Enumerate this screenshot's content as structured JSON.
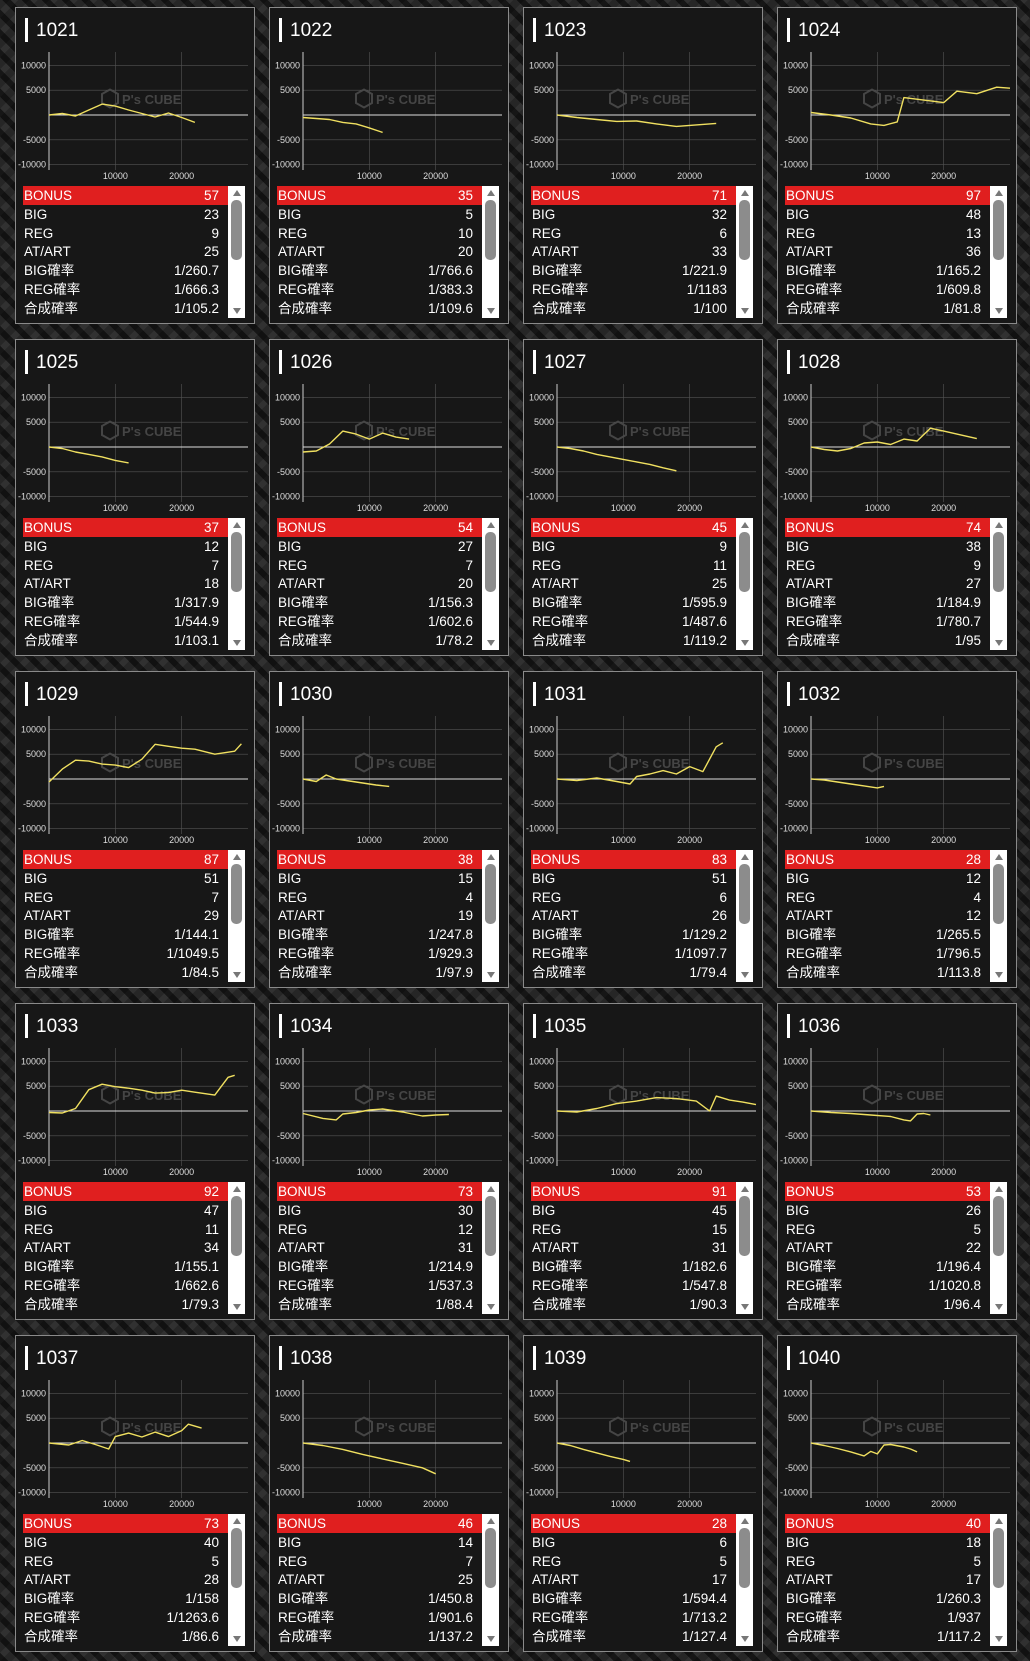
{
  "stat_labels": [
    "BONUS",
    "BIG",
    "REG",
    "AT/ART",
    "BIG確率",
    "REG確率",
    "合成確率"
  ],
  "watermark": "P's CUBE",
  "colors": {
    "line": "#f0e060",
    "bonus_bg": "#e01f1f"
  },
  "chart_data": [
    {
      "type": "line",
      "title": "1021",
      "xticks": [
        "10000",
        "20000"
      ],
      "yticks": [
        "10000",
        "5000",
        "-5000",
        "-10000"
      ],
      "x": [
        0,
        2000,
        4000,
        6000,
        8000,
        10000,
        12000,
        14000,
        16000,
        18000,
        20000,
        22000
      ],
      "y": [
        0,
        300,
        -200,
        1000,
        2200,
        1800,
        1000,
        300,
        -400,
        400,
        -500,
        -1500
      ]
    },
    {
      "type": "line",
      "title": "1022",
      "xticks": [
        "10000",
        "20000"
      ],
      "yticks": [
        "10000",
        "5000",
        "-5000",
        "-10000"
      ],
      "x": [
        0,
        2000,
        4000,
        6000,
        8000,
        10000,
        12000
      ],
      "y": [
        -500,
        -700,
        -900,
        -1500,
        -1800,
        -2600,
        -3500
      ]
    },
    {
      "type": "line",
      "title": "1023",
      "xticks": [
        "10000",
        "20000"
      ],
      "yticks": [
        "10000",
        "5000",
        "-5000",
        "-10000"
      ],
      "x": [
        0,
        3000,
        6000,
        9000,
        12000,
        15000,
        18000,
        21000,
        24000
      ],
      "y": [
        0,
        -500,
        -900,
        -1300,
        -1200,
        -1800,
        -2300,
        -2000,
        -1700
      ]
    },
    {
      "type": "line",
      "title": "1024",
      "xticks": [
        "10000",
        "20000"
      ],
      "yticks": [
        "10000",
        "5000",
        "-5000",
        "-10000"
      ],
      "x": [
        0,
        3000,
        6000,
        9000,
        11000,
        13000,
        14000,
        17000,
        20000,
        22000,
        25000,
        28000,
        30000
      ],
      "y": [
        500,
        0,
        -600,
        -1800,
        -2100,
        -1400,
        3500,
        3000,
        2500,
        4800,
        4300,
        5600,
        5400
      ]
    },
    {
      "type": "line",
      "title": "1025",
      "xticks": [
        "10000",
        "20000"
      ],
      "yticks": [
        "10000",
        "5000",
        "-5000",
        "-10000"
      ],
      "x": [
        0,
        2000,
        4000,
        6000,
        8000,
        10000,
        12000
      ],
      "y": [
        0,
        -300,
        -1000,
        -1500,
        -2000,
        -2700,
        -3200
      ]
    },
    {
      "type": "line",
      "title": "1026",
      "xticks": [
        "10000",
        "20000"
      ],
      "yticks": [
        "10000",
        "5000",
        "-5000",
        "-10000"
      ],
      "x": [
        0,
        2000,
        4000,
        6000,
        8000,
        10000,
        12000,
        14000,
        16000
      ],
      "y": [
        -1000,
        -800,
        600,
        3200,
        2600,
        1600,
        2800,
        2000,
        1600
      ]
    },
    {
      "type": "line",
      "title": "1027",
      "xticks": [
        "10000",
        "20000"
      ],
      "yticks": [
        "10000",
        "5000",
        "-5000",
        "-10000"
      ],
      "x": [
        0,
        2000,
        4000,
        6000,
        8000,
        10000,
        12000,
        14000,
        16000,
        18000
      ],
      "y": [
        0,
        -300,
        -800,
        -1500,
        -2000,
        -2500,
        -3000,
        -3500,
        -4200,
        -4800
      ]
    },
    {
      "type": "line",
      "title": "1028",
      "xticks": [
        "10000",
        "20000"
      ],
      "yticks": [
        "10000",
        "5000",
        "-5000",
        "-10000"
      ],
      "x": [
        0,
        2000,
        4000,
        6000,
        8000,
        10000,
        12000,
        14000,
        16000,
        18000,
        20000,
        22000,
        25000
      ],
      "y": [
        0,
        -500,
        -800,
        -300,
        800,
        1000,
        500,
        1600,
        1200,
        3800,
        3200,
        2600,
        1700
      ]
    },
    {
      "type": "line",
      "title": "1029",
      "xticks": [
        "10000",
        "20000"
      ],
      "yticks": [
        "10000",
        "5000",
        "-5000",
        "-10000"
      ],
      "x": [
        0,
        2000,
        4000,
        6000,
        8000,
        10000,
        12000,
        14000,
        16000,
        18000,
        20000,
        22000,
        25000,
        28000,
        29000
      ],
      "y": [
        -600,
        2000,
        3800,
        3600,
        3000,
        2800,
        2300,
        4000,
        7000,
        6600,
        6200,
        6000,
        5000,
        5600,
        7100
      ]
    },
    {
      "type": "line",
      "title": "1030",
      "xticks": [
        "10000",
        "20000"
      ],
      "yticks": [
        "10000",
        "5000",
        "-5000",
        "-10000"
      ],
      "x": [
        0,
        2000,
        3500,
        5000,
        7000,
        9000,
        11000,
        13000
      ],
      "y": [
        0,
        -500,
        800,
        0,
        -400,
        -800,
        -1200,
        -1500
      ]
    },
    {
      "type": "line",
      "title": "1031",
      "xticks": [
        "10000",
        "20000"
      ],
      "yticks": [
        "10000",
        "5000",
        "-5000",
        "-10000"
      ],
      "x": [
        0,
        3000,
        6000,
        9000,
        11000,
        12000,
        14000,
        16000,
        18000,
        20000,
        22000,
        24000,
        25000
      ],
      "y": [
        0,
        -300,
        200,
        -500,
        -1000,
        500,
        1000,
        1700,
        1000,
        2500,
        1500,
        6500,
        7300
      ]
    },
    {
      "type": "line",
      "title": "1032",
      "xticks": [
        "10000",
        "20000"
      ],
      "yticks": [
        "10000",
        "5000",
        "-5000",
        "-10000"
      ],
      "x": [
        0,
        2000,
        4000,
        6000,
        8000,
        10000,
        11000
      ],
      "y": [
        0,
        -200,
        -600,
        -1000,
        -1400,
        -1800,
        -1500
      ]
    },
    {
      "type": "line",
      "title": "1033",
      "xticks": [
        "10000",
        "20000"
      ],
      "yticks": [
        "10000",
        "5000",
        "-5000",
        "-10000"
      ],
      "x": [
        0,
        2000,
        4000,
        6000,
        8000,
        10000,
        12000,
        14000,
        16000,
        18000,
        20000,
        22000,
        25000,
        27000,
        28000
      ],
      "y": [
        -300,
        -400,
        500,
        4300,
        5400,
        4900,
        4600,
        4200,
        3600,
        3700,
        4200,
        3800,
        3200,
        6800,
        7200
      ]
    },
    {
      "type": "line",
      "title": "1034",
      "xticks": [
        "10000",
        "20000"
      ],
      "yticks": [
        "10000",
        "5000",
        "-5000",
        "-10000"
      ],
      "x": [
        0,
        3000,
        5000,
        6000,
        8000,
        10000,
        12000,
        15000,
        18000,
        20000,
        22000
      ],
      "y": [
        -500,
        -1500,
        -1800,
        -600,
        -300,
        200,
        400,
        -200,
        -1000,
        -800,
        -700
      ]
    },
    {
      "type": "line",
      "title": "1035",
      "xticks": [
        "10000",
        "20000"
      ],
      "yticks": [
        "10000",
        "5000",
        "-5000",
        "-10000"
      ],
      "x": [
        0,
        3000,
        6000,
        9000,
        12000,
        15000,
        18000,
        21000,
        23000,
        24000,
        26000,
        28000,
        30000
      ],
      "y": [
        0,
        -200,
        500,
        1500,
        2000,
        2700,
        2500,
        2000,
        0,
        3000,
        2200,
        1800,
        1300
      ]
    },
    {
      "type": "line",
      "title": "1036",
      "xticks": [
        "10000",
        "20000"
      ],
      "yticks": [
        "10000",
        "5000",
        "-5000",
        "-10000"
      ],
      "x": [
        0,
        3000,
        6000,
        9000,
        12000,
        14000,
        15000,
        16000,
        17000,
        18000
      ],
      "y": [
        0,
        -300,
        -500,
        -800,
        -1100,
        -1800,
        -2000,
        -600,
        -500,
        -800
      ]
    },
    {
      "type": "line",
      "title": "1037",
      "xticks": [
        "10000",
        "20000"
      ],
      "yticks": [
        "10000",
        "5000",
        "-5000",
        "-10000"
      ],
      "x": [
        0,
        3000,
        5000,
        7000,
        9000,
        10000,
        12000,
        14000,
        16000,
        18000,
        20000,
        21000,
        23000
      ],
      "y": [
        0,
        -400,
        500,
        -300,
        -1200,
        1300,
        2000,
        1200,
        2200,
        1300,
        2500,
        3800,
        3000
      ]
    },
    {
      "type": "line",
      "title": "1038",
      "xticks": [
        "10000",
        "20000"
      ],
      "yticks": [
        "10000",
        "5000",
        "-5000",
        "-10000"
      ],
      "x": [
        0,
        3000,
        6000,
        9000,
        12000,
        15000,
        18000,
        20000
      ],
      "y": [
        0,
        -500,
        -1300,
        -2300,
        -3200,
        -4100,
        -5000,
        -6200
      ]
    },
    {
      "type": "line",
      "title": "1039",
      "xticks": [
        "10000",
        "20000"
      ],
      "yticks": [
        "10000",
        "5000",
        "-5000",
        "-10000"
      ],
      "x": [
        0,
        2000,
        4000,
        6000,
        8000,
        10000,
        11000
      ],
      "y": [
        0,
        -500,
        -1300,
        -2000,
        -2700,
        -3300,
        -3700
      ]
    },
    {
      "type": "line",
      "title": "1040",
      "xticks": [
        "10000",
        "20000"
      ],
      "yticks": [
        "10000",
        "5000",
        "-5000",
        "-10000"
      ],
      "x": [
        0,
        2000,
        4000,
        6000,
        8000,
        9000,
        10000,
        11000,
        12000,
        14000,
        15000,
        16000
      ],
      "y": [
        0,
        -500,
        -1100,
        -1800,
        -2600,
        -1700,
        -2200,
        -400,
        -300,
        -800,
        -1200,
        -1800
      ]
    }
  ],
  "machines": [
    {
      "id": "1021",
      "stats": [
        "57",
        "23",
        "9",
        "25",
        "1/260.7",
        "1/666.3",
        "1/105.2"
      ]
    },
    {
      "id": "1022",
      "stats": [
        "35",
        "5",
        "10",
        "20",
        "1/766.6",
        "1/383.3",
        "1/109.6"
      ]
    },
    {
      "id": "1023",
      "stats": [
        "71",
        "32",
        "6",
        "33",
        "1/221.9",
        "1/1183",
        "1/100"
      ]
    },
    {
      "id": "1024",
      "stats": [
        "97",
        "48",
        "13",
        "36",
        "1/165.2",
        "1/609.8",
        "1/81.8"
      ]
    },
    {
      "id": "1025",
      "stats": [
        "37",
        "12",
        "7",
        "18",
        "1/317.9",
        "1/544.9",
        "1/103.1"
      ]
    },
    {
      "id": "1026",
      "stats": [
        "54",
        "27",
        "7",
        "20",
        "1/156.3",
        "1/602.6",
        "1/78.2"
      ]
    },
    {
      "id": "1027",
      "stats": [
        "45",
        "9",
        "11",
        "25",
        "1/595.9",
        "1/487.6",
        "1/119.2"
      ]
    },
    {
      "id": "1028",
      "stats": [
        "74",
        "38",
        "9",
        "27",
        "1/184.9",
        "1/780.7",
        "1/95"
      ]
    },
    {
      "id": "1029",
      "stats": [
        "87",
        "51",
        "7",
        "29",
        "1/144.1",
        "1/1049.5",
        "1/84.5"
      ]
    },
    {
      "id": "1030",
      "stats": [
        "38",
        "15",
        "4",
        "19",
        "1/247.8",
        "1/929.3",
        "1/97.9"
      ]
    },
    {
      "id": "1031",
      "stats": [
        "83",
        "51",
        "6",
        "26",
        "1/129.2",
        "1/1097.7",
        "1/79.4"
      ]
    },
    {
      "id": "1032",
      "stats": [
        "28",
        "12",
        "4",
        "12",
        "1/265.5",
        "1/796.5",
        "1/113.8"
      ]
    },
    {
      "id": "1033",
      "stats": [
        "92",
        "47",
        "11",
        "34",
        "1/155.1",
        "1/662.6",
        "1/79.3"
      ]
    },
    {
      "id": "1034",
      "stats": [
        "73",
        "30",
        "12",
        "31",
        "1/214.9",
        "1/537.3",
        "1/88.4"
      ]
    },
    {
      "id": "1035",
      "stats": [
        "91",
        "45",
        "15",
        "31",
        "1/182.6",
        "1/547.8",
        "1/90.3"
      ]
    },
    {
      "id": "1036",
      "stats": [
        "53",
        "26",
        "5",
        "22",
        "1/196.4",
        "1/1020.8",
        "1/96.4"
      ]
    },
    {
      "id": "1037",
      "stats": [
        "73",
        "40",
        "5",
        "28",
        "1/158",
        "1/1263.6",
        "1/86.6"
      ]
    },
    {
      "id": "1038",
      "stats": [
        "46",
        "14",
        "7",
        "25",
        "1/450.8",
        "1/901.6",
        "1/137.2"
      ]
    },
    {
      "id": "1039",
      "stats": [
        "28",
        "6",
        "5",
        "17",
        "1/594.4",
        "1/713.2",
        "1/127.4"
      ]
    },
    {
      "id": "1040",
      "stats": [
        "40",
        "18",
        "5",
        "17",
        "1/260.3",
        "1/937",
        "1/117.2"
      ]
    }
  ]
}
